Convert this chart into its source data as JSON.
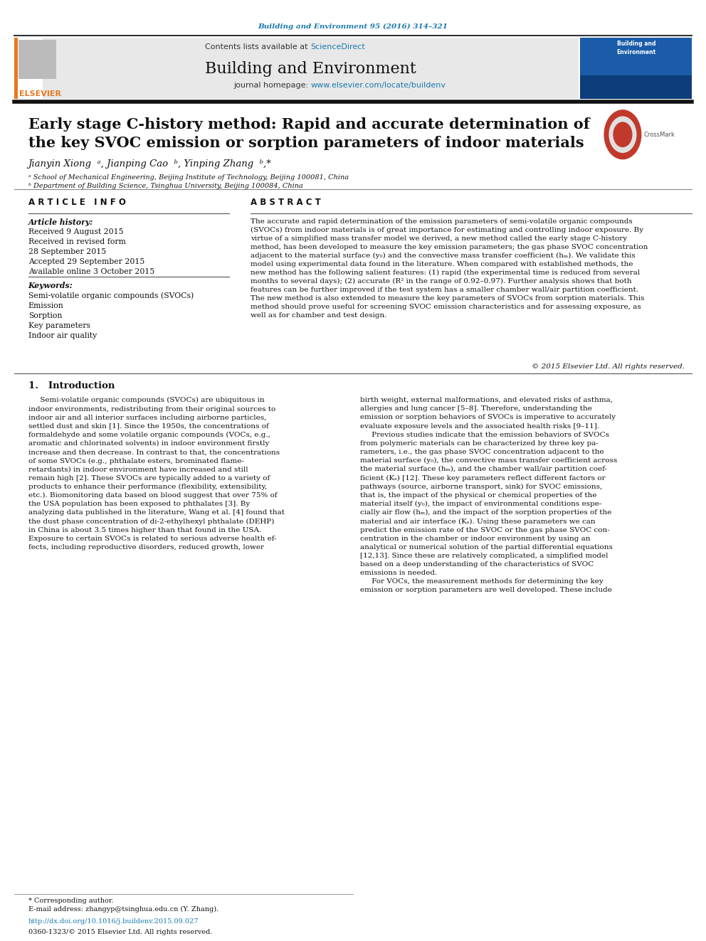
{
  "bg_color": "#ffffff",
  "page_width": 9.92,
  "page_height": 13.23,
  "top_journal_ref": "Building and Environment 95 (2016) 314–321",
  "top_journal_ref_color": "#1a7aad",
  "header_bg_color": "#e8e8e8",
  "header_text_contents": "Contents lists available at",
  "header_sciencedirect": "ScienceDirect",
  "header_journal_title": "Building and Environment",
  "header_journal_homepage_prefix": "journal homepage: ",
  "header_journal_homepage_url": "www.elsevier.com/locate/buildenv",
  "header_url_color": "#1a7aad",
  "separator_color": "#1a1a1a",
  "article_title": "Early stage C-history method: Rapid and accurate determination of\nthe key SVOC emission or sorption parameters of indoor materials",
  "article_title_fontsize": 15,
  "authors": "Jianyin Xiong  ᵃ, Jianping Cao  ᵇ, Yinping Zhang  ᵇ,*",
  "affil_a": "ᵃ School of Mechanical Engineering, Beijing Institute of Technology, Beijing 100081, China",
  "affil_b": "ᵇ Department of Building Science, Tsinghua University, Beijing 100084, China",
  "article_info_title": "A R T I C L E   I N F O",
  "article_history_label": "Article history:",
  "article_history": "Received 9 August 2015\nReceived in revised form\n28 September 2015\nAccepted 29 September 2015\nAvailable online 3 October 2015",
  "keywords_label": "Keywords:",
  "keywords": "Semi-volatile organic compounds (SVOCs)\nEmission\nSorption\nKey parameters\nIndoor air quality",
  "abstract_title": "A B S T R A C T",
  "abstract_text": "The accurate and rapid determination of the emission parameters of semi-volatile organic compounds\n(SVOCs) from indoor materials is of great importance for estimating and controlling indoor exposure. By\nvirtue of a simplified mass transfer model we derived, a new method called the early stage C-history\nmethod, has been developed to measure the key emission parameters; the gas phase SVOC concentration\nadjacent to the material surface (y₀) and the convective mass transfer coefficient (hₘ). We validate this\nmodel using experimental data found in the literature. When compared with established methods, the\nnew method has the following salient features: (1) rapid (the experimental time is reduced from several\nmonths to several days); (2) accurate (R² in the range of 0.92–0.97). Further analysis shows that both\nfeatures can be further improved if the test system has a smaller chamber wall/air partition coefficient.\nThe new method is also extended to measure the key parameters of SVOCs from sorption materials. This\nmethod should prove useful for screening SVOC emission characteristics and for assessing exposure, as\nwell as for chamber and test design.",
  "copyright_text": "© 2015 Elsevier Ltd. All rights reserved.",
  "section1_title": "1.   Introduction",
  "section1_col1": "     Semi-volatile organic compounds (SVOCs) are ubiquitous in\nindoor environments, redistributing from their original sources to\nindoor air and all interior surfaces including airborne particles,\nsettled dust and skin [1]. Since the 1950s, the concentrations of\nformaldehyde and some volatile organic compounds (VOCs, e.g.,\naromatic and chlorinated solvents) in indoor environment firstly\nincrease and then decrease. In contrast to that, the concentrations\nof some SVOCs (e.g., phthalate esters, brominated flame-\nretardants) in indoor environment have increased and still\nremain high [2]. These SVOCs are typically added to a variety of\nproducts to enhance their performance (flexibility, extensibility,\netc.). Biomonitoring data based on blood suggest that over 75% of\nthe USA population has been exposed to phthalates [3]. By\nanalyzing data published in the literature, Wang et al. [4] found that\nthe dust phase concentration of di-2-ethylhexyl phthalate (DEHP)\nin China is about 3.5 times higher than that found in the USA.\nExposure to certain SVOCs is related to serious adverse health ef-\nfects, including reproductive disorders, reduced growth, lower",
  "section1_col2": "birth weight, external malformations, and elevated risks of asthma,\nallergies and lung cancer [5–8]. Therefore, understanding the\nemission or sorption behaviors of SVOCs is imperative to accurately\nevaluate exposure levels and the associated health risks [9–11].\n     Previous studies indicate that the emission behaviors of SVOCs\nfrom polymeric materials can be characterized by three key pa-\nrameters, i.e., the gas phase SVOC concentration adjacent to the\nmaterial surface (y₀), the convective mass transfer coefficient across\nthe material surface (hₘ), and the chamber wall/air partition coef-\nficient (Kₛ) [12]. These key parameters reflect different factors or\npathways (source, airborne transport, sink) for SVOC emissions,\nthat is, the impact of the physical or chemical properties of the\nmaterial itself (y₀), the impact of environmental conditions espe-\ncially air flow (hₘ), and the impact of the sorption properties of the\nmaterial and air interface (Kₛ). Using these parameters we can\npredict the emission rate of the SVOC or the gas phase SVOC con-\ncentration in the chamber or indoor environment by using an\nanalytical or numerical solution of the partial differential equations\n[12,13]. Since these are relatively complicated, a simplified model\nbased on a deep understanding of the characteristics of SVOC\nemissions is needed.\n     For VOCs, the measurement methods for determining the key\nemission or sorption parameters are well developed. These include",
  "footer_corresponding": "* Corresponding author.",
  "footer_email": "E-mail address: zhangyp@tsinghua.edu.cn (Y. Zhang).",
  "footer_doi": "http://dx.doi.org/10.1016/j.buildenv.2015.09.027",
  "footer_issn": "0360-1323/© 2015 Elsevier Ltd. All rights reserved.",
  "footer_doi_color": "#1a7aad",
  "elsevier_color": "#e87722"
}
